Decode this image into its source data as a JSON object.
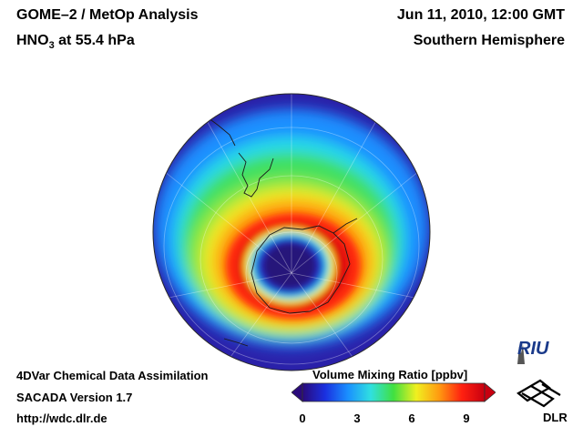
{
  "header": {
    "product": "GOME–2 / MetOp Analysis",
    "species": "HNO",
    "species_sub": "3",
    "level": " at 55.4 hPa",
    "datetime": "Jun 11, 2010, 12:00 GMT",
    "region": "Southern Hemisphere"
  },
  "footer": {
    "line1": "4DVar Chemical Data Assimilation",
    "line2": "SACADA Version 1.7",
    "line3": "http://wdc.dlr.de"
  },
  "colorbar": {
    "title": "Volume Mixing Ratio [ppbv]",
    "ticks": [
      "0",
      "3",
      "6",
      "9"
    ],
    "range": [
      0,
      10
    ],
    "colors": [
      "#2a0a7a",
      "#1a30e0",
      "#1a90ff",
      "#30e0e0",
      "#40e040",
      "#f0f020",
      "#ff9a10",
      "#ff2010",
      "#c80010"
    ]
  },
  "logos": {
    "riu": "RIU",
    "dlr": "DLR"
  }
}
